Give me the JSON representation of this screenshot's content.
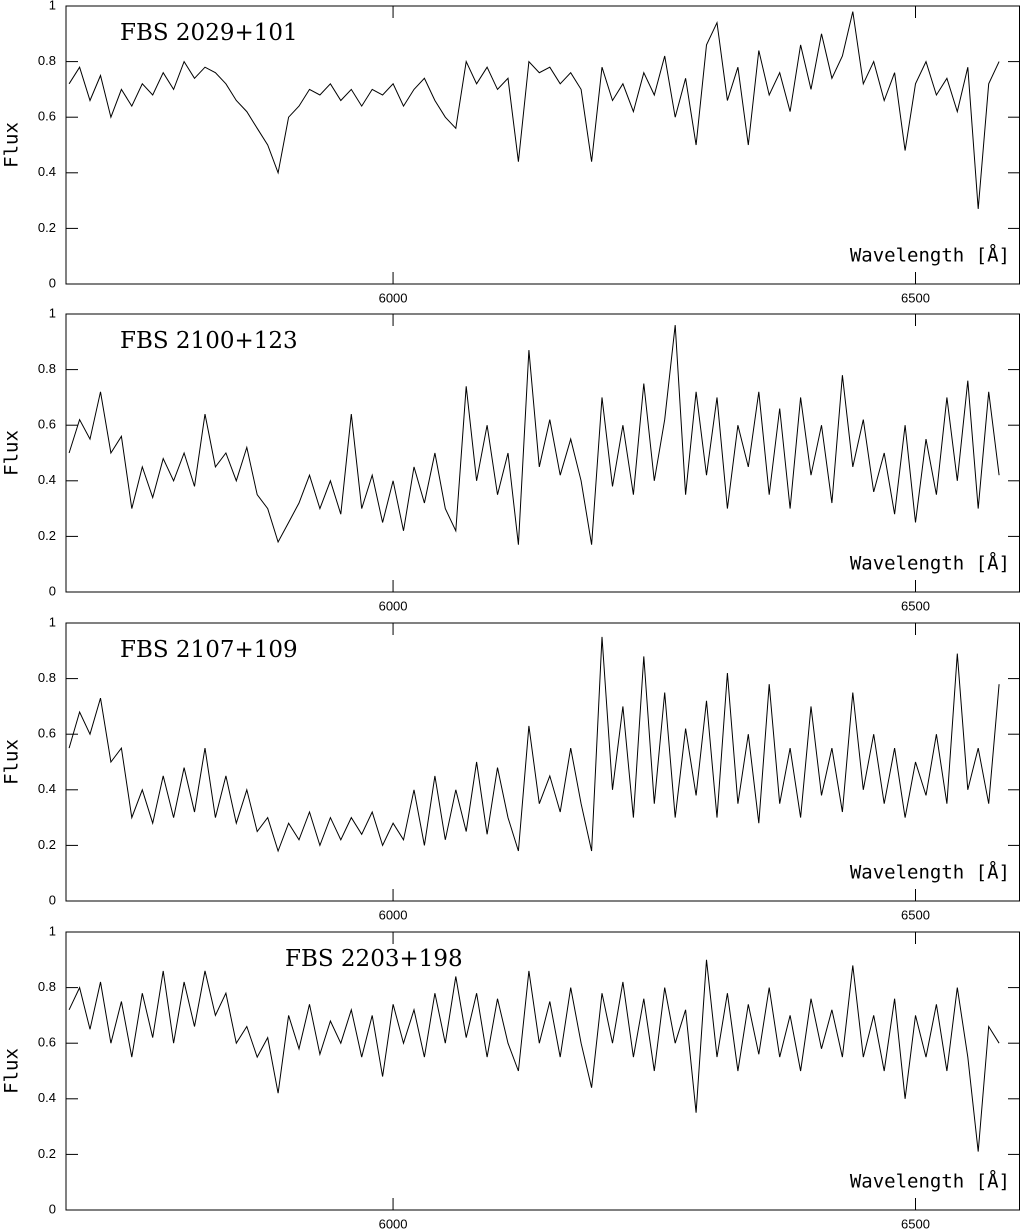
{
  "chart_data": [
    {
      "type": "line",
      "title": "FBS 2029+101",
      "ylabel": "Flux",
      "xlabel": "Wavelength [Å]",
      "color": "#000000",
      "xlim": [
        5687,
        6600
      ],
      "ylim": [
        0,
        1
      ],
      "xticks": [
        6000,
        6500
      ],
      "yticks": [
        0,
        0.2,
        0.4,
        0.6,
        0.8,
        1
      ],
      "x": [
        5690,
        5700,
        5710,
        5720,
        5730,
        5740,
        5750,
        5760,
        5770,
        5780,
        5790,
        5800,
        5810,
        5820,
        5830,
        5840,
        5850,
        5860,
        5870,
        5880,
        5890,
        5900,
        5910,
        5920,
        5930,
        5940,
        5950,
        5960,
        5970,
        5980,
        5990,
        6000,
        6010,
        6020,
        6030,
        6040,
        6050,
        6060,
        6070,
        6080,
        6090,
        6100,
        6110,
        6120,
        6130,
        6140,
        6150,
        6160,
        6170,
        6180,
        6190,
        6200,
        6210,
        6220,
        6230,
        6240,
        6250,
        6260,
        6270,
        6280,
        6290,
        6300,
        6310,
        6320,
        6330,
        6340,
        6350,
        6360,
        6370,
        6380,
        6390,
        6400,
        6410,
        6420,
        6430,
        6440,
        6450,
        6460,
        6470,
        6480,
        6490,
        6500,
        6510,
        6520,
        6530,
        6540,
        6550,
        6560,
        6570,
        6580
      ],
      "values": [
        0.72,
        0.78,
        0.66,
        0.75,
        0.6,
        0.7,
        0.64,
        0.72,
        0.68,
        0.76,
        0.7,
        0.8,
        0.74,
        0.78,
        0.76,
        0.72,
        0.66,
        0.62,
        0.56,
        0.5,
        0.4,
        0.6,
        0.64,
        0.7,
        0.68,
        0.72,
        0.66,
        0.7,
        0.64,
        0.7,
        0.68,
        0.72,
        0.64,
        0.7,
        0.74,
        0.66,
        0.6,
        0.56,
        0.8,
        0.72,
        0.78,
        0.7,
        0.74,
        0.44,
        0.8,
        0.76,
        0.78,
        0.72,
        0.76,
        0.7,
        0.44,
        0.78,
        0.66,
        0.72,
        0.62,
        0.76,
        0.68,
        0.82,
        0.6,
        0.74,
        0.5,
        0.86,
        0.94,
        0.66,
        0.78,
        0.5,
        0.84,
        0.68,
        0.76,
        0.62,
        0.86,
        0.7,
        0.9,
        0.74,
        0.82,
        0.98,
        0.72,
        0.8,
        0.66,
        0.76,
        0.48,
        0.72,
        0.8,
        0.68,
        0.74,
        0.62,
        0.78,
        0.27,
        0.72,
        0.8
      ]
    },
    {
      "type": "line",
      "title": "FBS 2100+123",
      "ylabel": "Flux",
      "xlabel": "Wavelength [Å]",
      "color": "#000000",
      "xlim": [
        5687,
        6600
      ],
      "ylim": [
        0,
        1
      ],
      "xticks": [
        6000,
        6500
      ],
      "yticks": [
        0,
        0.2,
        0.4,
        0.6,
        0.8,
        1
      ],
      "x": [
        5690,
        5700,
        5710,
        5720,
        5730,
        5740,
        5750,
        5760,
        5770,
        5780,
        5790,
        5800,
        5810,
        5820,
        5830,
        5840,
        5850,
        5860,
        5870,
        5880,
        5890,
        5900,
        5910,
        5920,
        5930,
        5940,
        5950,
        5960,
        5970,
        5980,
        5990,
        6000,
        6010,
        6020,
        6030,
        6040,
        6050,
        6060,
        6070,
        6080,
        6090,
        6100,
        6110,
        6120,
        6130,
        6140,
        6150,
        6160,
        6170,
        6180,
        6190,
        6200,
        6210,
        6220,
        6230,
        6240,
        6250,
        6260,
        6270,
        6280,
        6290,
        6300,
        6310,
        6320,
        6330,
        6340,
        6350,
        6360,
        6370,
        6380,
        6390,
        6400,
        6410,
        6420,
        6430,
        6440,
        6450,
        6460,
        6470,
        6480,
        6490,
        6500,
        6510,
        6520,
        6530,
        6540,
        6550,
        6560,
        6570,
        6580
      ],
      "values": [
        0.5,
        0.62,
        0.55,
        0.72,
        0.5,
        0.56,
        0.3,
        0.45,
        0.34,
        0.48,
        0.4,
        0.5,
        0.38,
        0.64,
        0.45,
        0.5,
        0.4,
        0.52,
        0.35,
        0.3,
        0.18,
        0.25,
        0.32,
        0.42,
        0.3,
        0.4,
        0.28,
        0.64,
        0.3,
        0.42,
        0.25,
        0.4,
        0.22,
        0.45,
        0.32,
        0.5,
        0.3,
        0.22,
        0.74,
        0.4,
        0.6,
        0.35,
        0.5,
        0.17,
        0.87,
        0.45,
        0.62,
        0.42,
        0.55,
        0.4,
        0.17,
        0.7,
        0.38,
        0.6,
        0.35,
        0.75,
        0.4,
        0.62,
        0.96,
        0.35,
        0.72,
        0.42,
        0.7,
        0.3,
        0.6,
        0.45,
        0.72,
        0.35,
        0.66,
        0.3,
        0.7,
        0.42,
        0.6,
        0.32,
        0.78,
        0.45,
        0.62,
        0.36,
        0.5,
        0.28,
        0.6,
        0.25,
        0.55,
        0.35,
        0.7,
        0.4,
        0.76,
        0.3,
        0.72,
        0.42
      ]
    },
    {
      "type": "line",
      "title": "FBS 2107+109",
      "ylabel": "Flux",
      "xlabel": "Wavelength [Å]",
      "color": "#000000",
      "xlim": [
        5687,
        6600
      ],
      "ylim": [
        0,
        1
      ],
      "xticks": [
        6000,
        6500
      ],
      "yticks": [
        0,
        0.2,
        0.4,
        0.6,
        0.8,
        1
      ],
      "x": [
        5690,
        5700,
        5710,
        5720,
        5730,
        5740,
        5750,
        5760,
        5770,
        5780,
        5790,
        5800,
        5810,
        5820,
        5830,
        5840,
        5850,
        5860,
        5870,
        5880,
        5890,
        5900,
        5910,
        5920,
        5930,
        5940,
        5950,
        5960,
        5970,
        5980,
        5990,
        6000,
        6010,
        6020,
        6030,
        6040,
        6050,
        6060,
        6070,
        6080,
        6090,
        6100,
        6110,
        6120,
        6130,
        6140,
        6150,
        6160,
        6170,
        6180,
        6190,
        6200,
        6210,
        6220,
        6230,
        6240,
        6250,
        6260,
        6270,
        6280,
        6290,
        6300,
        6310,
        6320,
        6330,
        6340,
        6350,
        6360,
        6370,
        6380,
        6390,
        6400,
        6410,
        6420,
        6430,
        6440,
        6450,
        6460,
        6470,
        6480,
        6490,
        6500,
        6510,
        6520,
        6530,
        6540,
        6550,
        6560,
        6570,
        6580
      ],
      "values": [
        0.55,
        0.68,
        0.6,
        0.73,
        0.5,
        0.55,
        0.3,
        0.4,
        0.28,
        0.45,
        0.3,
        0.48,
        0.32,
        0.55,
        0.3,
        0.45,
        0.28,
        0.4,
        0.25,
        0.3,
        0.18,
        0.28,
        0.22,
        0.32,
        0.2,
        0.3,
        0.22,
        0.3,
        0.24,
        0.32,
        0.2,
        0.28,
        0.22,
        0.4,
        0.2,
        0.45,
        0.22,
        0.4,
        0.25,
        0.5,
        0.24,
        0.48,
        0.3,
        0.18,
        0.63,
        0.35,
        0.45,
        0.32,
        0.55,
        0.35,
        0.18,
        0.95,
        0.4,
        0.7,
        0.3,
        0.88,
        0.35,
        0.75,
        0.3,
        0.62,
        0.38,
        0.72,
        0.3,
        0.82,
        0.35,
        0.6,
        0.28,
        0.78,
        0.35,
        0.55,
        0.3,
        0.7,
        0.38,
        0.55,
        0.32,
        0.75,
        0.4,
        0.6,
        0.35,
        0.55,
        0.3,
        0.5,
        0.38,
        0.6,
        0.35,
        0.89,
        0.4,
        0.55,
        0.35,
        0.78
      ]
    },
    {
      "type": "line",
      "title": "FBS 2203+198",
      "ylabel": "Flux",
      "xlabel": "Wavelength [Å]",
      "color": "#000000",
      "xlim": [
        5687,
        6600
      ],
      "ylim": [
        0,
        1
      ],
      "xticks": [
        6000,
        6500
      ],
      "yticks": [
        0,
        0.2,
        0.4,
        0.6,
        0.8,
        1
      ],
      "x": [
        5690,
        5700,
        5710,
        5720,
        5730,
        5740,
        5750,
        5760,
        5770,
        5780,
        5790,
        5800,
        5810,
        5820,
        5830,
        5840,
        5850,
        5860,
        5870,
        5880,
        5890,
        5900,
        5910,
        5920,
        5930,
        5940,
        5950,
        5960,
        5970,
        5980,
        5990,
        6000,
        6010,
        6020,
        6030,
        6040,
        6050,
        6060,
        6070,
        6080,
        6090,
        6100,
        6110,
        6120,
        6130,
        6140,
        6150,
        6160,
        6170,
        6180,
        6190,
        6200,
        6210,
        6220,
        6230,
        6240,
        6250,
        6260,
        6270,
        6280,
        6290,
        6300,
        6310,
        6320,
        6330,
        6340,
        6350,
        6360,
        6370,
        6380,
        6390,
        6400,
        6410,
        6420,
        6430,
        6440,
        6450,
        6460,
        6470,
        6480,
        6490,
        6500,
        6510,
        6520,
        6530,
        6540,
        6550,
        6560,
        6570,
        6580
      ],
      "values": [
        0.72,
        0.8,
        0.65,
        0.82,
        0.6,
        0.75,
        0.55,
        0.78,
        0.62,
        0.86,
        0.6,
        0.82,
        0.66,
        0.86,
        0.7,
        0.78,
        0.6,
        0.66,
        0.55,
        0.62,
        0.42,
        0.7,
        0.58,
        0.74,
        0.56,
        0.68,
        0.6,
        0.72,
        0.55,
        0.7,
        0.48,
        0.74,
        0.6,
        0.72,
        0.55,
        0.78,
        0.6,
        0.84,
        0.62,
        0.78,
        0.55,
        0.76,
        0.6,
        0.5,
        0.86,
        0.6,
        0.75,
        0.55,
        0.8,
        0.6,
        0.44,
        0.78,
        0.6,
        0.82,
        0.55,
        0.76,
        0.5,
        0.8,
        0.6,
        0.72,
        0.35,
        0.9,
        0.55,
        0.78,
        0.5,
        0.74,
        0.56,
        0.8,
        0.55,
        0.7,
        0.5,
        0.76,
        0.58,
        0.72,
        0.55,
        0.88,
        0.55,
        0.7,
        0.5,
        0.76,
        0.4,
        0.7,
        0.55,
        0.74,
        0.5,
        0.8,
        0.55,
        0.21,
        0.66,
        0.6
      ]
    }
  ]
}
